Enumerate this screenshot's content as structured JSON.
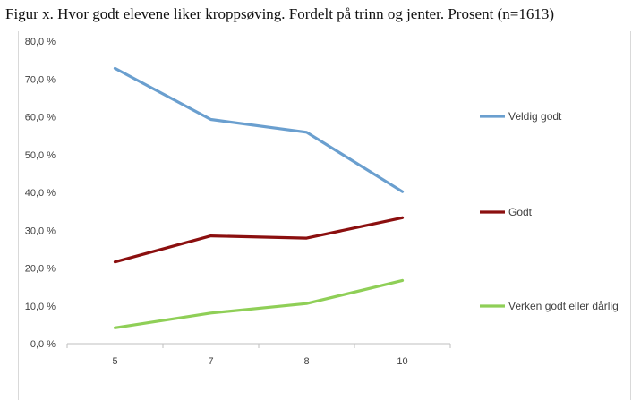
{
  "title": "Figur x. Hvor godt elevene liker kroppsøving. Fordelt på trinn og jenter. Prosent (n=1613)",
  "chart_data": {
    "type": "line",
    "title": "Figur x. Hvor godt elevene liker kroppsøving. Fordelt på trinn og jenter. Prosent (n=1613)",
    "xlabel": "",
    "ylabel": "",
    "categories": [
      "5",
      "7",
      "8",
      "10"
    ],
    "ylim": [
      0,
      80
    ],
    "y_ticks": [
      "0,0 %",
      "10,0 %",
      "20,0 %",
      "30,0 %",
      "40,0 %",
      "50,0 %",
      "60,0 %",
      "70,0 %",
      "80,0 %"
    ],
    "grid": false,
    "legend_position": "right",
    "series": [
      {
        "name": "Veldig godt",
        "color": "#6a9fcf",
        "values": [
          72.8,
          59.3,
          55.9,
          40.2
        ]
      },
      {
        "name": "Godt",
        "color": "#8b0f0f",
        "values": [
          21.6,
          28.5,
          27.9,
          33.3
        ]
      },
      {
        "name": "Verken godt eller dårlig",
        "color": "#8fcf57",
        "values": [
          4.2,
          8.1,
          10.6,
          16.7
        ]
      }
    ]
  }
}
